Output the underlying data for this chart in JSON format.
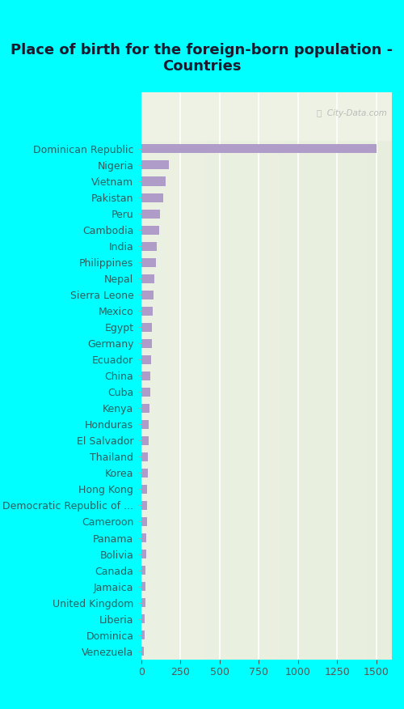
{
  "title": "Place of birth for the foreign-born population -\nCountries",
  "categories": [
    "Venezuela",
    "Dominica",
    "Liberia",
    "United Kingdom",
    "Jamaica",
    "Canada",
    "Bolivia",
    "Panama",
    "Cameroon",
    "Democratic Republic of ...",
    "Hong Kong",
    "Korea",
    "Thailand",
    "El Salvador",
    "Honduras",
    "Kenya",
    "Cuba",
    "China",
    "Ecuador",
    "Germany",
    "Egypt",
    "Mexico",
    "Sierra Leone",
    "Nepal",
    "Philippines",
    "India",
    "Cambodia",
    "Peru",
    "Pakistan",
    "Vietnam",
    "Nigeria",
    "Dominican Republic"
  ],
  "values": [
    18,
    20,
    22,
    25,
    27,
    28,
    30,
    32,
    34,
    36,
    38,
    40,
    42,
    44,
    46,
    50,
    55,
    58,
    62,
    65,
    68,
    72,
    75,
    85,
    92,
    100,
    115,
    120,
    140,
    155,
    175,
    1500
  ],
  "bar_color": "#b09cc8",
  "fig_bg_color": "#00ffff",
  "label_color": "#2a6060",
  "xlim": [
    0,
    1600
  ],
  "xticks": [
    0,
    250,
    500,
    750,
    1000,
    1250,
    1500
  ],
  "watermark": "ⓘ  City-Data.com",
  "title_fontsize": 13,
  "label_fontsize": 9,
  "tick_fontsize": 9,
  "bg_left_color": "#f5f7ee",
  "bg_right_color": "#e4ede6"
}
